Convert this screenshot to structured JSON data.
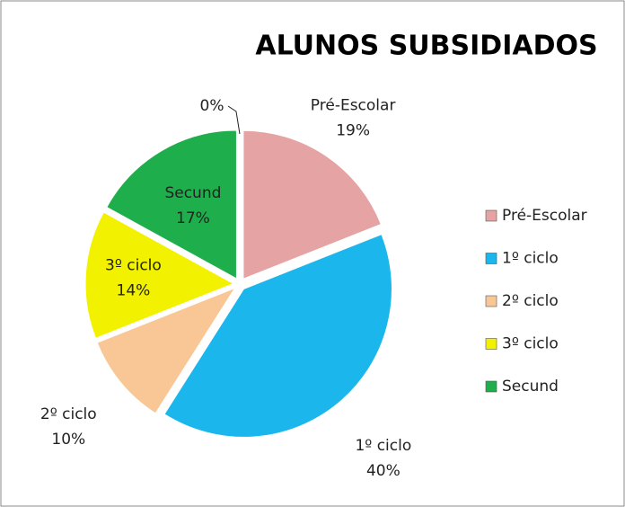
{
  "chart_data": {
    "type": "pie",
    "title": "ALUNOS SUBSIDIADOS",
    "categories": [
      "Pré-Escolar",
      "1º ciclo",
      "2º ciclo",
      "3º ciclo",
      "Secund",
      null
    ],
    "values": [
      19,
      40,
      10,
      14,
      17,
      0
    ],
    "value_labels": [
      "19%",
      "40%",
      "10%",
      "14%",
      "17%",
      "0%"
    ],
    "colors": [
      "#e6a3a3",
      "#1ab6ec",
      "#f9c796",
      "#f2f200",
      "#1fae4c",
      "#7f7f7f"
    ],
    "legend": "right"
  }
}
